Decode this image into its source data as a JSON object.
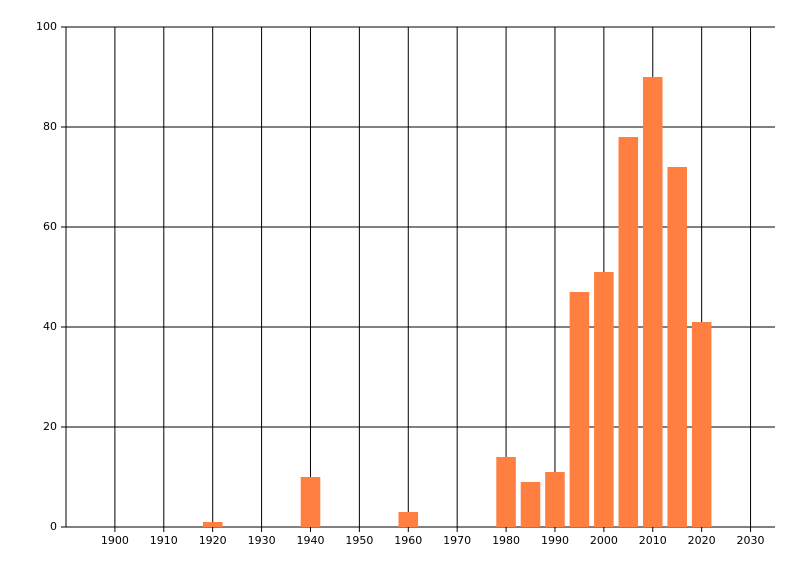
{
  "chart_data": {
    "type": "bar",
    "x": [
      1920,
      1940,
      1960,
      1980,
      1985,
      1990,
      1995,
      2000,
      2005,
      2010,
      2015,
      2020
    ],
    "values": [
      1,
      10,
      3,
      14,
      9,
      11,
      47,
      51,
      78,
      90,
      72,
      41
    ],
    "color": "#ff7f40",
    "xlim": [
      1890,
      2035
    ],
    "xticks": [
      1900,
      1910,
      1920,
      1930,
      1940,
      1950,
      1960,
      1970,
      1980,
      1990,
      2000,
      2010,
      2020,
      2030
    ],
    "ylim": [
      0,
      100
    ],
    "yticks": [
      0,
      20,
      40,
      60,
      80,
      100
    ],
    "grid": true
  }
}
